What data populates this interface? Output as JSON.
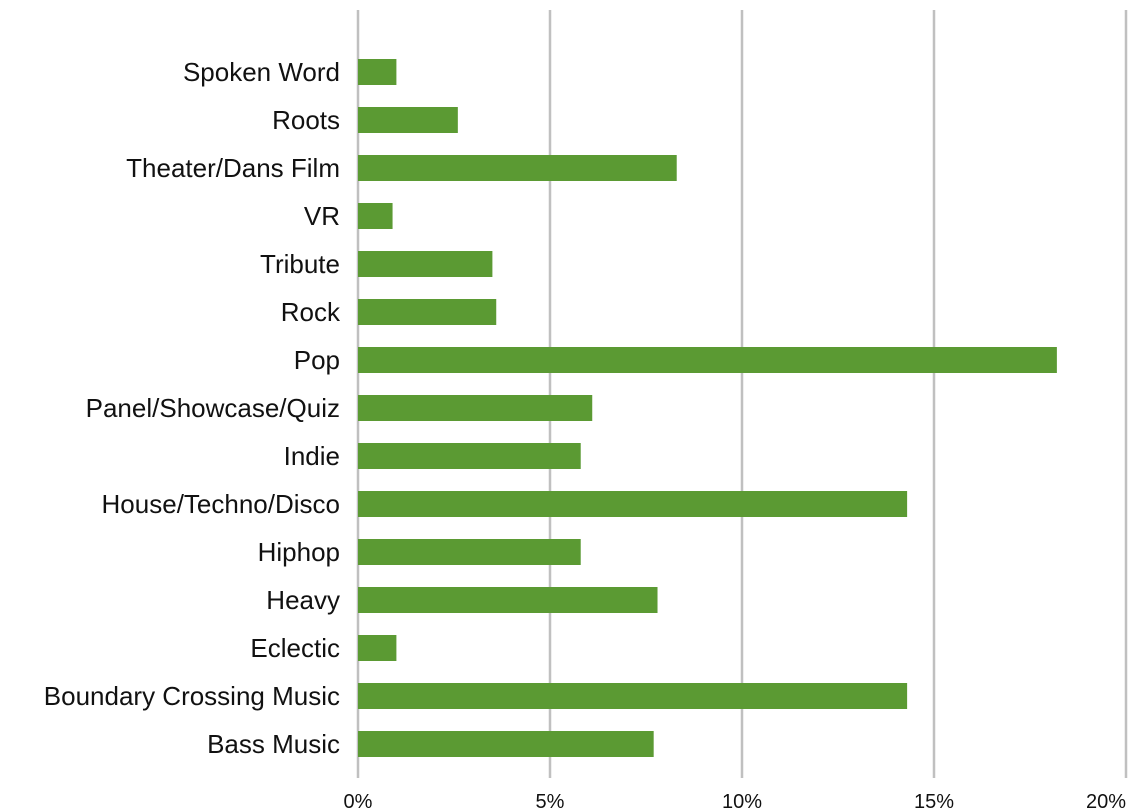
{
  "chart_data": {
    "type": "bar",
    "orientation": "horizontal",
    "title": "",
    "xlabel": "",
    "ylabel": "",
    "categories": [
      "Spoken Word",
      "Roots",
      "Theater/Dans Film",
      "VR",
      "Tribute",
      "Rock",
      "Pop",
      "Panel/Showcase/Quiz",
      "Indie",
      "House/Techno/Disco",
      "Hiphop",
      "Heavy",
      "Eclectic",
      "Boundary Crossing Music",
      "Bass Music"
    ],
    "values": [
      1.0,
      2.6,
      8.3,
      0.9,
      3.5,
      3.6,
      18.2,
      6.1,
      5.8,
      14.3,
      5.8,
      7.8,
      1.0,
      14.3,
      7.7
    ],
    "value_unit": "%",
    "xlim": [
      0,
      20
    ],
    "x_ticks": [
      "0%",
      "5%",
      "10%",
      "15%",
      "20%"
    ],
    "grid": "vertical",
    "legend": "none",
    "bar_color": "#5b9a33",
    "grid_color": "#c0c0c0"
  }
}
